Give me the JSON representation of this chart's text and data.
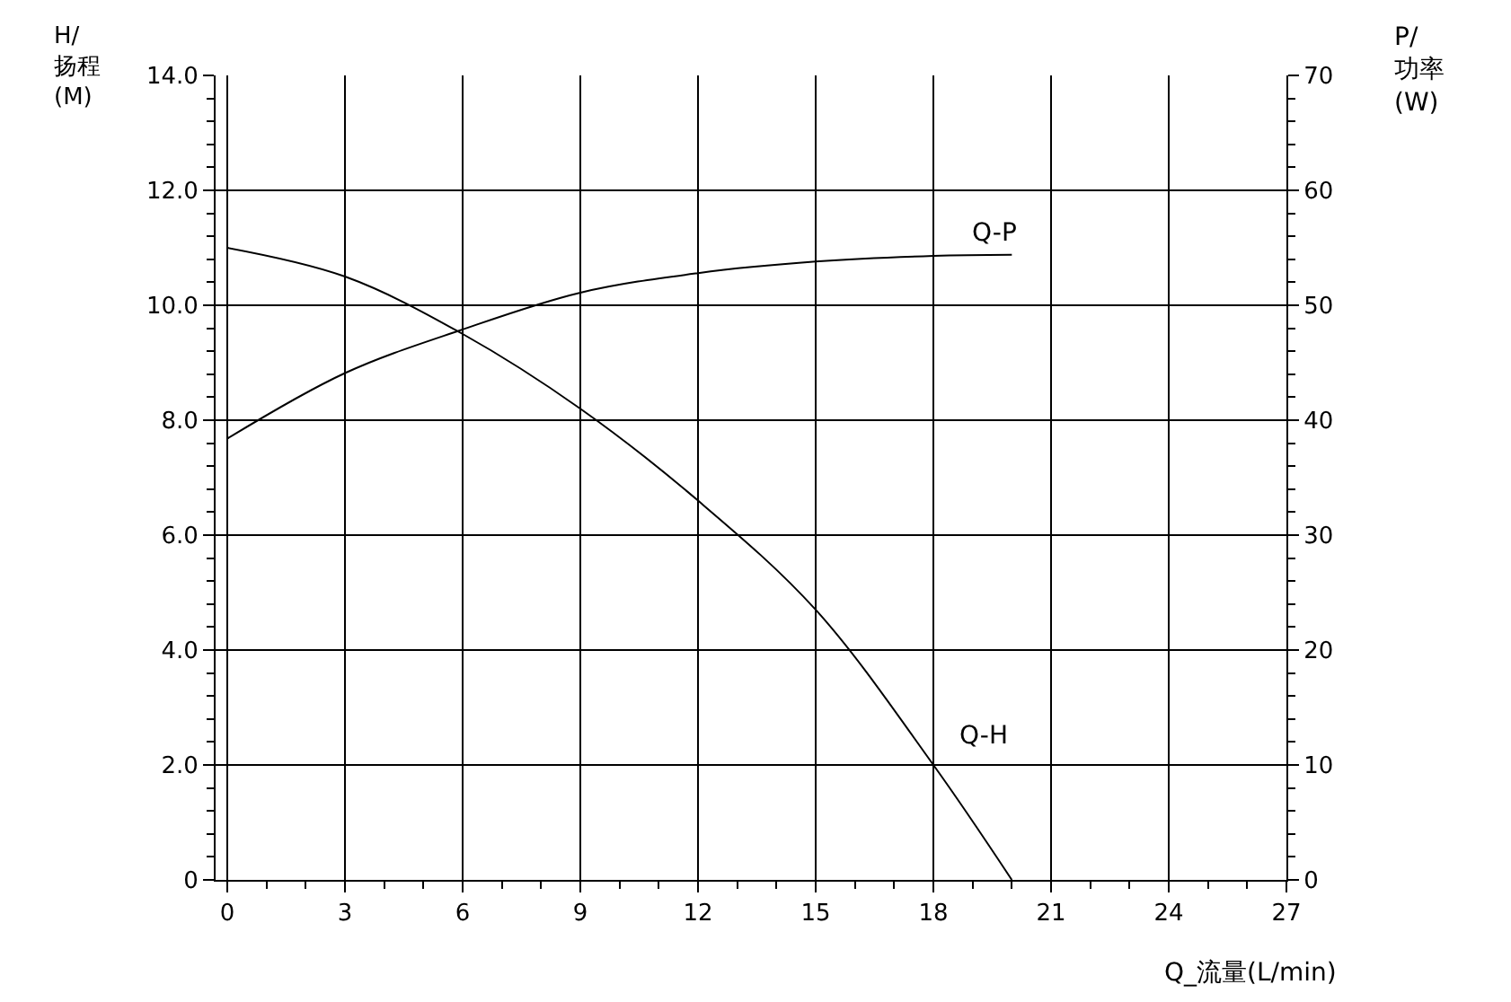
{
  "chart_data": {
    "type": "line",
    "xlabel": "Q_流量(L/min)",
    "ylabel": "H/\n扬程\n(M)",
    "y2label": "P/\n功率\n(W)",
    "x": [
      0,
      3,
      6,
      9,
      12,
      15,
      18,
      20
    ],
    "series": [
      {
        "name": "Q-H",
        "color": "#000000",
        "values": [
          11.0,
          10.5,
          9.5,
          8.2,
          6.6,
          4.7,
          2.0,
          0
        ]
      },
      {
        "name": "Q-P",
        "color": "#000000",
        "axis": "y2",
        "values": [
          38.4,
          44.1,
          47.9,
          51.1,
          52.8,
          53.8,
          54.3,
          54.4
        ]
      }
    ],
    "xlim": [
      -0.3,
      27
    ],
    "xticks": [
      0,
      3,
      6,
      9,
      12,
      15,
      18,
      21,
      24,
      27
    ],
    "ylim": [
      0,
      14
    ],
    "yticks": [
      0,
      {
        "value": 2,
        "label": "2.0"
      },
      {
        "value": 4,
        "label": "4.0"
      },
      {
        "value": 6,
        "label": "6.0"
      },
      {
        "value": 8,
        "label": "8.0"
      },
      {
        "value": 10,
        "label": "10.0"
      },
      {
        "value": 12,
        "label": "12.0"
      },
      {
        "value": 14,
        "label": "14.0"
      }
    ],
    "y2lim": [
      0,
      70
    ],
    "y2ticks": [
      0,
      10,
      20,
      30,
      40,
      50,
      60,
      70
    ],
    "grid": true,
    "legend": false,
    "marker": "none",
    "line_style": "solid"
  }
}
